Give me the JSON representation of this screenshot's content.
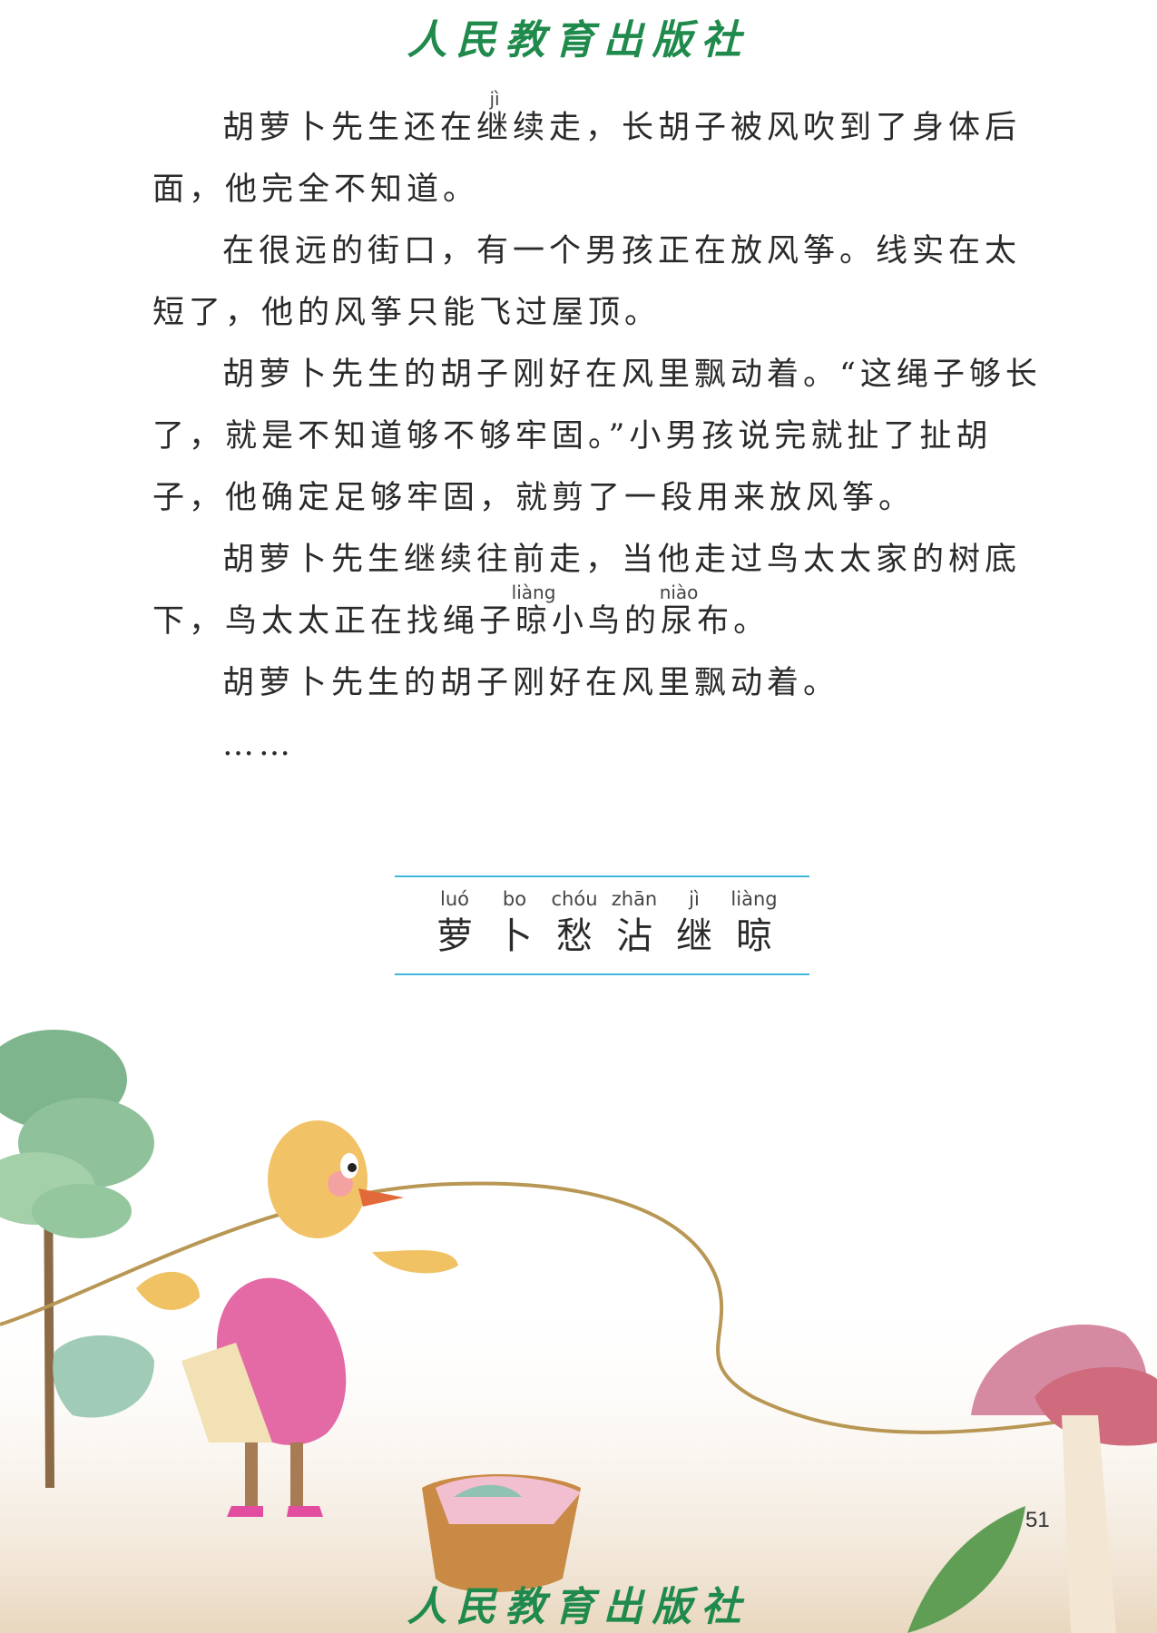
{
  "header": {
    "publisher": "人民教育出版社"
  },
  "footer": {
    "publisher": "人民教育出版社",
    "page_number": "51"
  },
  "paragraphs": {
    "p1": {
      "a": "胡萝卜先生还在",
      "ruby_char": "继",
      "ruby_py": "jì",
      "b": "续走，长胡子被风吹到了身体后面，他完全不知道。"
    },
    "p2": "在很远的街口，有一个男孩正在放风筝。线实在太短了，他的风筝只能飞过屋顶。",
    "p3": "胡萝卜先生的胡子刚好在风里飘动着。“这绳子够长了，就是不知道够不够牢固。”小男孩说完就扯了扯胡子，他确定足够牢固，就剪了一段用来放风筝。",
    "p4": {
      "a": "胡萝卜先生继续往前走，当他走过鸟太太家的树底下，鸟太太正在找绳子",
      "ruby1_char": "晾",
      "ruby1_py": "liàng",
      "b": "小鸟的",
      "ruby2_char": "尿",
      "ruby2_py": "niào",
      "c": "布。"
    },
    "p5": "胡萝卜先生的胡子刚好在风里飘动着。",
    "p6": "……"
  },
  "vocab": [
    {
      "pinyin": "luó",
      "char": "萝"
    },
    {
      "pinyin": "bo",
      "char": "卜"
    },
    {
      "pinyin": "chóu",
      "char": "愁"
    },
    {
      "pinyin": "zhān",
      "char": "沾"
    },
    {
      "pinyin": "jì",
      "char": "继"
    },
    {
      "pinyin": "liàng",
      "char": "晾"
    }
  ]
}
